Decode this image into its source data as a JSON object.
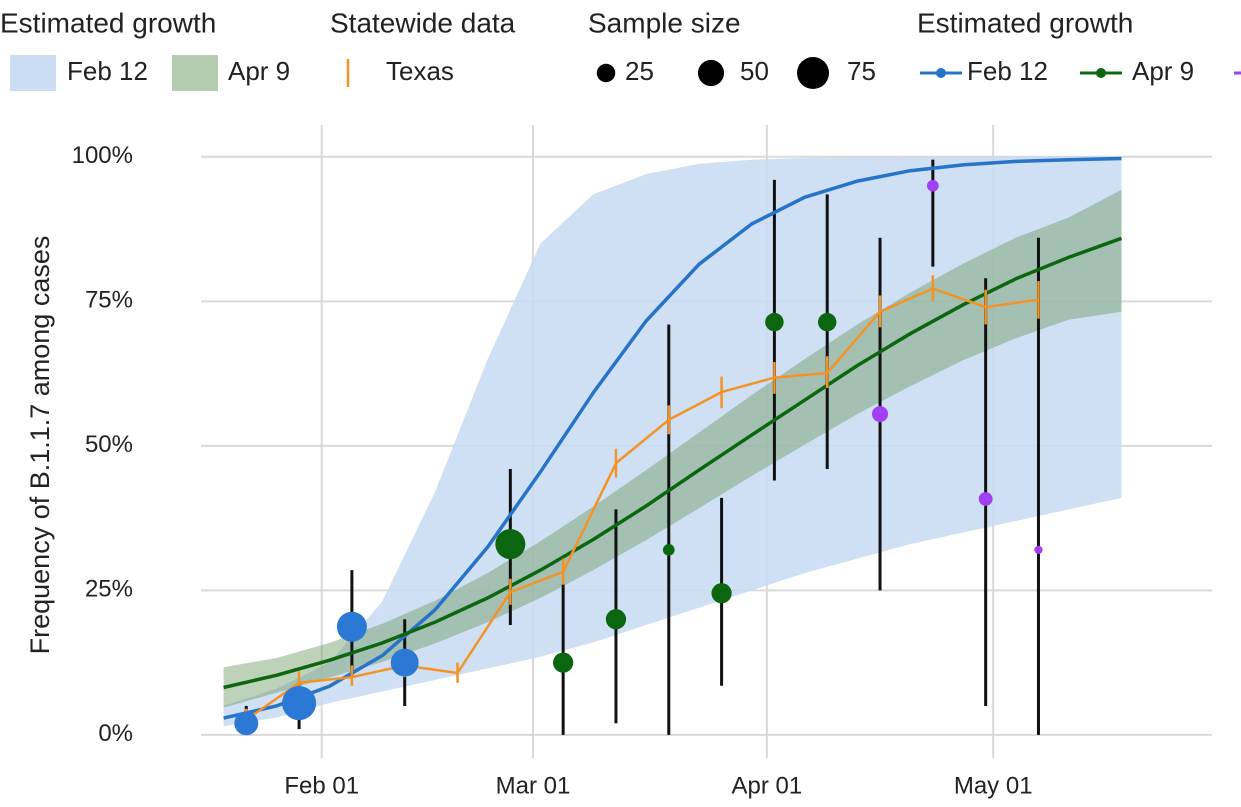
{
  "chart_data": {
    "type": "line",
    "y_label": "Frequency of B.1.1.7 among cases",
    "legend_titles": [
      "Estimated growth",
      "Statewide data",
      "Sample size",
      "Estimated growth"
    ],
    "size_legend": [
      25,
      50,
      75
    ],
    "xlim": [
      "01-16",
      "05-30"
    ],
    "xticks": [
      {
        "value": "02-01",
        "label": "Feb 01"
      },
      {
        "value": "03-01",
        "label": "Mar 01"
      },
      {
        "value": "04-01",
        "label": "Apr 01"
      },
      {
        "value": "05-01",
        "label": "May 01"
      }
    ],
    "ylim": [
      -4,
      105.5
    ],
    "yticks": [
      {
        "value": 0,
        "label": "0%"
      },
      {
        "value": 25,
        "label": "25%"
      },
      {
        "value": 50,
        "label": "50%"
      },
      {
        "value": 75,
        "label": "75%"
      },
      {
        "value": 100,
        "label": "100%"
      }
    ],
    "grid": true,
    "series": [
      {
        "name": "Feb 12",
        "color": "#2673c9",
        "band_color": "#c8dbf2",
        "x": [
          "01-19",
          "01-26",
          "02-02",
          "02-09",
          "02-16",
          "02-23",
          "03-02",
          "03-09",
          "03-16",
          "03-23",
          "03-30",
          "04-06",
          "04-13",
          "04-20",
          "04-27",
          "05-04",
          "05-11",
          "05-18"
        ],
        "values": [
          2.9,
          5.0,
          8.4,
          13.7,
          21.6,
          32.5,
          45.5,
          59.2,
          71.6,
          81.4,
          88.4,
          93.0,
          95.8,
          97.6,
          98.6,
          99.2,
          99.5,
          99.7
        ],
        "lower": [
          1.5,
          3,
          5.5,
          7.5,
          9.5,
          11.5,
          13.5,
          16,
          19,
          22,
          25,
          28,
          30.5,
          33,
          35,
          37,
          39,
          41
        ],
        "upper": [
          5,
          8,
          12.5,
          23,
          42,
          65,
          85,
          93.5,
          97,
          98.8,
          99.5,
          99.8,
          99.9,
          99.9,
          100,
          100,
          100,
          100
        ]
      },
      {
        "name": "Apr 9",
        "color": "#0b660f",
        "band_color": "#6e9a63",
        "x": [
          "01-19",
          "01-26",
          "02-02",
          "02-09",
          "02-16",
          "02-23",
          "03-02",
          "03-09",
          "03-16",
          "03-23",
          "03-30",
          "04-06",
          "04-13",
          "04-20",
          "04-27",
          "05-04",
          "05-11",
          "05-18"
        ],
        "values": [
          8.2,
          10.3,
          12.9,
          15.9,
          19.5,
          23.7,
          28.5,
          33.8,
          39.6,
          45.8,
          51.9,
          57.9,
          63.9,
          69.4,
          74.4,
          78.9,
          82.6,
          85.9
        ],
        "lower": [
          4.7,
          7.3,
          9.9,
          12.6,
          15.8,
          19.5,
          23.7,
          28.5,
          33.7,
          39.2,
          44.8,
          50.2,
          55.5,
          60.3,
          64.8,
          68.6,
          71.8,
          73.2
        ],
        "upper": [
          11.7,
          13.3,
          15.9,
          19.2,
          23.2,
          28,
          33.5,
          39.5,
          45.8,
          52.3,
          58.8,
          65,
          71,
          76.5,
          81.5,
          86,
          89.5,
          94.3
        ]
      },
      {
        "name": "Texas",
        "color": "#f39325",
        "x": [
          "01-22",
          "01-29",
          "02-05",
          "02-12",
          "02-19",
          "02-26",
          "03-05",
          "03-12",
          "03-19",
          "03-26",
          "04-02",
          "04-09",
          "04-16",
          "04-23",
          "04-30",
          "05-07"
        ],
        "values": [
          2.6,
          9,
          10,
          12,
          10.7,
          24.7,
          28.2,
          47,
          54.5,
          59.3,
          61.8,
          62.6,
          73.2,
          77.2,
          74,
          75.3
        ],
        "lower": [
          1,
          7.5,
          8.5,
          10,
          9,
          22.5,
          26,
          44.5,
          52,
          56.5,
          59,
          60,
          70.5,
          75,
          71,
          72
        ],
        "upper": [
          4.5,
          11,
          12,
          14,
          12.5,
          27,
          30.5,
          49.5,
          57,
          62,
          64.5,
          65.5,
          76,
          79.5,
          77,
          78.5
        ]
      }
    ],
    "observations": [
      {
        "color": "#2b79d4",
        "x": [
          "01-22",
          "01-29",
          "02-05",
          "02-12"
        ],
        "values": [
          2,
          5.5,
          18.7,
          12.5
        ],
        "lower": [
          0,
          1,
          10,
          5
        ],
        "upper": [
          5,
          9,
          28.5,
          20
        ],
        "sizes": [
          42,
          85,
          66,
          57
        ]
      },
      {
        "color": "#0b660f",
        "x": [
          "02-26",
          "03-05",
          "03-12",
          "03-19",
          "03-26",
          "04-02",
          "04-09"
        ],
        "values": [
          33,
          12.5,
          20,
          32,
          24.5,
          71.4,
          71.4
        ],
        "lower": [
          19,
          0,
          2,
          0,
          8.5,
          44,
          46
        ],
        "upper": [
          46,
          26,
          39,
          71,
          41,
          96,
          93.5
        ],
        "sizes": [
          66,
          30,
          30,
          10,
          30,
          25,
          25
        ]
      },
      {
        "color": "#a040f0",
        "x": [
          "04-16",
          "04-23",
          "04-30",
          "05-07"
        ],
        "values": [
          55.5,
          95,
          40.8,
          32
        ],
        "lower": [
          25,
          81,
          5,
          0
        ],
        "upper": [
          86,
          99.5,
          79,
          86
        ],
        "sizes": [
          19,
          10,
          14,
          5
        ]
      }
    ]
  }
}
